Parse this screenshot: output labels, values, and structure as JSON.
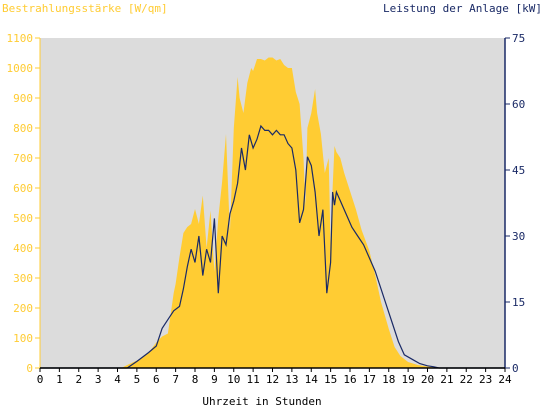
{
  "chart_data": {
    "type": "area",
    "left_title": "Bestrahlungsstärke [W/qm]",
    "right_title": "Leistung der Anlage [kW]",
    "xlabel": "Uhrzeit in Stunden",
    "x_ticks": [
      "0",
      "1",
      "2",
      "3",
      "4",
      "5",
      "6",
      "7",
      "8",
      "9",
      "10",
      "11",
      "12",
      "13",
      "14",
      "15",
      "16",
      "17",
      "18",
      "19",
      "20",
      "21",
      "22",
      "23",
      "24"
    ],
    "xlim": [
      0,
      24
    ],
    "y_left_ticks": [
      "0",
      "100",
      "200",
      "300",
      "400",
      "500",
      "600",
      "700",
      "800",
      "900",
      "1000",
      "1100"
    ],
    "y_left_lim": [
      0,
      1100
    ],
    "y_right_ticks": [
      "0",
      "15",
      "30",
      "45",
      "60",
      "75"
    ],
    "y_right_lim": [
      0,
      75
    ],
    "colors": {
      "plot_bg": "#dcdcdc",
      "irradiance": "#ffcc33",
      "power": "#1a2a66",
      "left_axis": "#ffcc33",
      "right_axis": "#1a2a66"
    },
    "series": [
      {
        "axis": "left",
        "x": [
          0,
          4.2,
          4.5,
          5,
          5.3,
          5.6,
          6,
          6.3,
          6.6,
          6.9,
          7,
          7.2,
          7.4,
          7.6,
          7.8,
          8,
          8.2,
          8.4,
          8.6,
          8.8,
          9,
          9.2,
          9.4,
          9.6,
          9.8,
          10,
          10.2,
          10.3,
          10.5,
          10.7,
          10.9,
          11,
          11.2,
          11.4,
          11.6,
          11.8,
          12,
          12.2,
          12.4,
          12.6,
          12.8,
          13,
          13.2,
          13.4,
          13.6,
          13.7,
          13.8,
          14,
          14.2,
          14.3,
          14.5,
          14.7,
          14.9,
          15,
          15.1,
          15.2,
          15.3,
          15.5,
          15.7,
          16,
          16.3,
          16.6,
          17,
          17.3,
          17.6,
          18,
          18.3,
          18.6,
          19,
          19.5,
          20,
          20.5,
          21,
          24
        ],
        "values": [
          0,
          0,
          10,
          25,
          35,
          50,
          85,
          105,
          115,
          250,
          280,
          370,
          450,
          470,
          480,
          530,
          480,
          575,
          400,
          525,
          320,
          500,
          620,
          780,
          450,
          800,
          970,
          900,
          850,
          950,
          1000,
          990,
          1030,
          1030,
          1025,
          1035,
          1035,
          1025,
          1030,
          1010,
          1000,
          1000,
          920,
          880,
          700,
          540,
          800,
          850,
          930,
          850,
          780,
          650,
          700,
          400,
          600,
          740,
          720,
          700,
          650,
          590,
          530,
          460,
          390,
          310,
          220,
          130,
          70,
          40,
          20,
          10,
          5,
          0,
          0,
          0
        ]
      },
      {
        "axis": "right",
        "x": [
          0,
          4.5,
          5,
          5.3,
          5.6,
          6,
          6.3,
          6.6,
          6.9,
          7.2,
          7.4,
          7.6,
          7.8,
          8,
          8.2,
          8.4,
          8.6,
          8.8,
          9,
          9.2,
          9.4,
          9.6,
          9.8,
          10,
          10.2,
          10.4,
          10.6,
          10.8,
          11,
          11.2,
          11.4,
          11.6,
          11.8,
          12,
          12.2,
          12.4,
          12.6,
          12.8,
          13,
          13.2,
          13.4,
          13.6,
          13.8,
          14,
          14.2,
          14.4,
          14.6,
          14.8,
          15,
          15.1,
          15.2,
          15.3,
          15.5,
          15.8,
          16.1,
          16.4,
          16.7,
          17,
          17.3,
          17.6,
          17.9,
          18.2,
          18.5,
          18.8,
          19.2,
          19.6,
          20,
          20.3,
          20.6,
          24
        ],
        "values": [
          0,
          0,
          1.5,
          2.5,
          3.5,
          5,
          9,
          11,
          13,
          14,
          18,
          23,
          27,
          24,
          30,
          21,
          27,
          24,
          34,
          17,
          30,
          28,
          35,
          38,
          42,
          50,
          45,
          53,
          50,
          52,
          55,
          54,
          54,
          53,
          54,
          53,
          53,
          51,
          50,
          45,
          33,
          36,
          48,
          46,
          40,
          30,
          36,
          17,
          24,
          40,
          37,
          40,
          38,
          35,
          32,
          30,
          28,
          25,
          22,
          18,
          14,
          10,
          6,
          3,
          2,
          1,
          0.5,
          0.3,
          0,
          0
        ]
      }
    ]
  }
}
